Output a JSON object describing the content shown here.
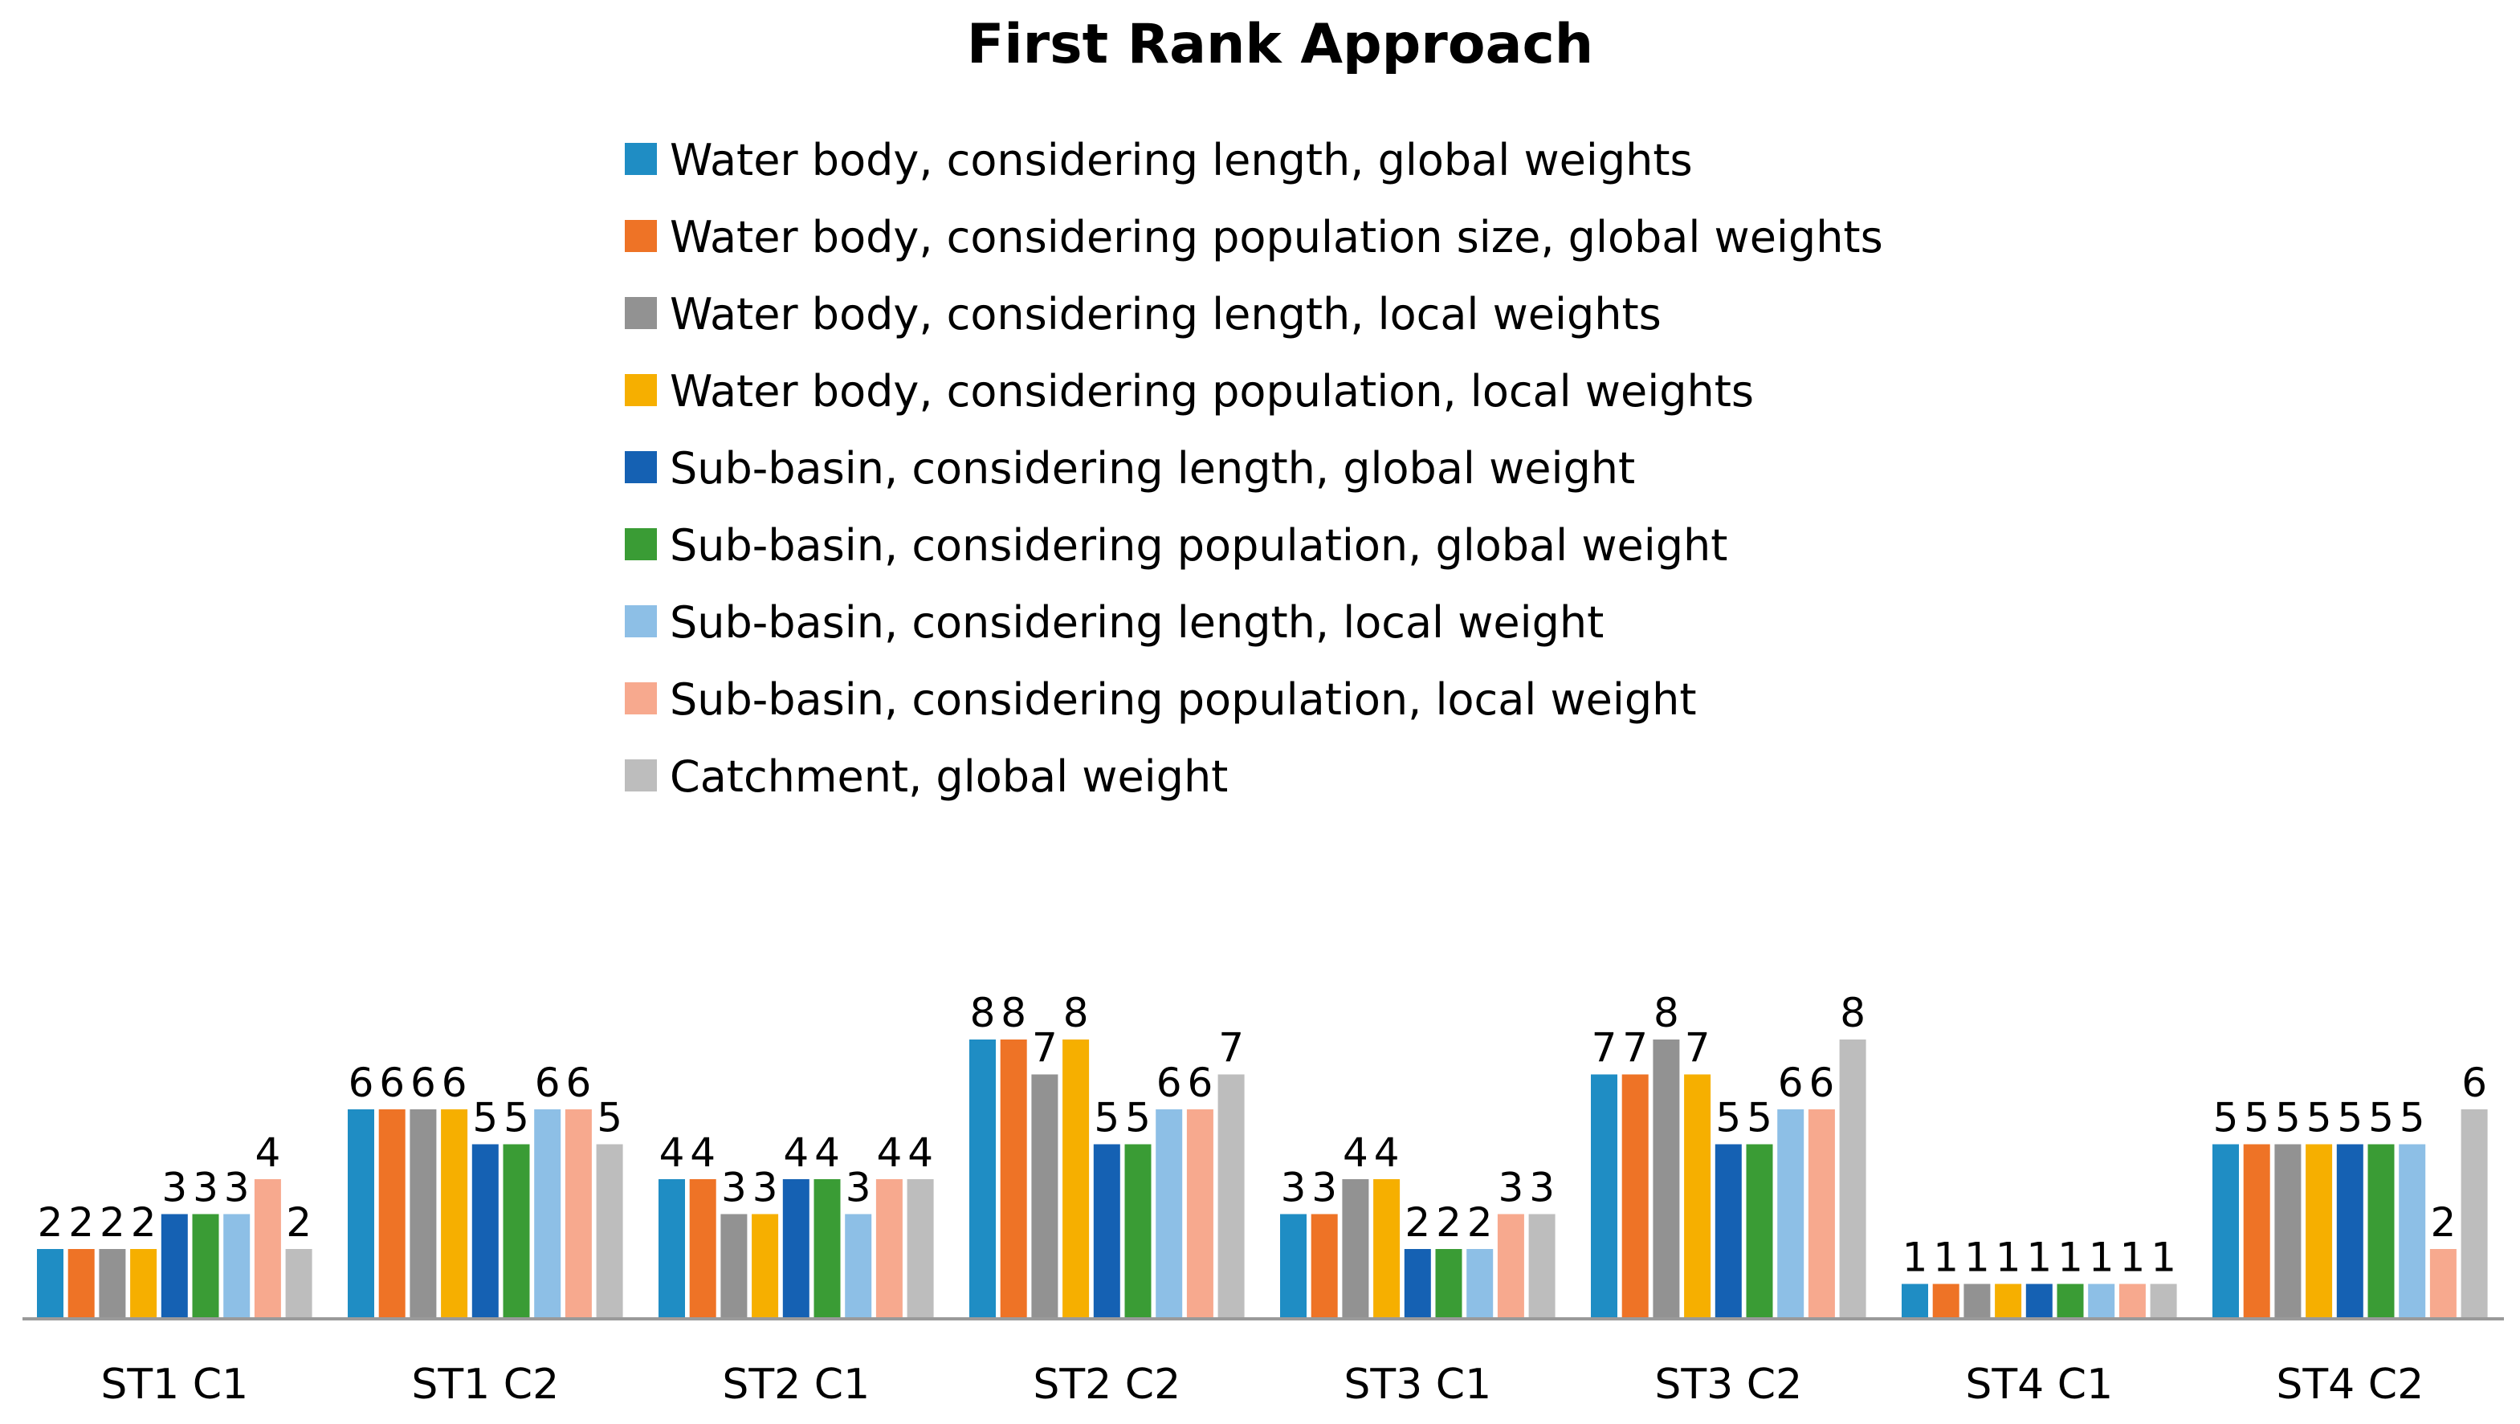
{
  "chart_data": {
    "type": "bar",
    "title": "First Rank Approach",
    "xlabel": "",
    "ylabel": "",
    "ylim": [
      0,
      8
    ],
    "grid": false,
    "legend_position": "top",
    "categories": [
      "ST1 C1",
      "ST1 C2",
      "ST2 C1",
      "ST2 C2",
      "ST3 C1",
      "ST3 C2",
      "ST4 C1",
      "ST4 C2"
    ],
    "series": [
      {
        "name": "Water body, considering length, global weights",
        "color": "#1F8DC4",
        "values": [
          2,
          6,
          4,
          8,
          3,
          7,
          1,
          5
        ]
      },
      {
        "name": "Water body, considering population size, global weights",
        "color": "#EE7326",
        "values": [
          2,
          6,
          4,
          8,
          3,
          7,
          1,
          5
        ]
      },
      {
        "name": "Water body, considering length, local weights",
        "color": "#929292",
        "values": [
          2,
          6,
          3,
          7,
          4,
          8,
          1,
          5
        ]
      },
      {
        "name": "Water body, considering population, local weights",
        "color": "#F6AF00",
        "values": [
          2,
          6,
          3,
          8,
          4,
          7,
          1,
          5
        ]
      },
      {
        "name": "Sub-basin, considering length, global weight",
        "color": "#1561B3",
        "values": [
          3,
          5,
          4,
          5,
          2,
          5,
          1,
          5
        ]
      },
      {
        "name": "Sub-basin, considering population, global weight",
        "color": "#3A9C35",
        "values": [
          3,
          5,
          4,
          5,
          2,
          5,
          1,
          5
        ]
      },
      {
        "name": "Sub-basin, considering length, local weight",
        "color": "#8DBFE6",
        "values": [
          3,
          6,
          3,
          6,
          2,
          6,
          1,
          5
        ]
      },
      {
        "name": "Sub-basin, considering population, local weight",
        "color": "#F7A98E",
        "values": [
          4,
          6,
          4,
          6,
          3,
          6,
          1,
          2
        ]
      },
      {
        "name": "Catchment, global weight",
        "color": "#BDBDBD",
        "values": [
          2,
          5,
          4,
          7,
          3,
          8,
          1,
          6
        ]
      }
    ]
  }
}
